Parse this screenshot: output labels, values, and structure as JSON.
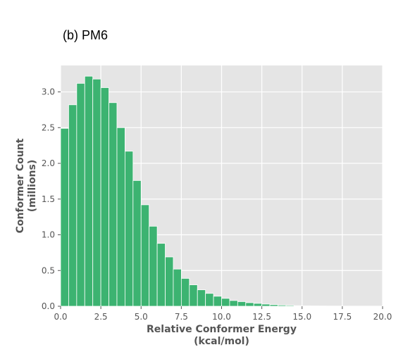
{
  "panel": {
    "title": "(b) PM6"
  },
  "chart_data": {
    "type": "bar",
    "title": "(b) PM6",
    "xlabel_lines": [
      "Relative Conformer Energy",
      "(kcal/mol)"
    ],
    "ylabel_lines": [
      "Conformer Count",
      "(millions)"
    ],
    "xlim": [
      0,
      20
    ],
    "ylim": [
      0,
      3.37
    ],
    "xticks": [
      "0.0",
      "2.5",
      "5.0",
      "7.5",
      "10.0",
      "12.5",
      "15.0",
      "17.5",
      "20.0"
    ],
    "yticks": [
      "0.0",
      "0.5",
      "1.0",
      "1.5",
      "2.0",
      "2.5",
      "3.0"
    ],
    "grid": true,
    "background": "#e5e5e5",
    "bar_color": "#3cb371",
    "bin_width": 0.5,
    "bins": [
      {
        "x": 0.0,
        "value": 2.49
      },
      {
        "x": 0.5,
        "value": 2.82
      },
      {
        "x": 1.0,
        "value": 3.12
      },
      {
        "x": 1.5,
        "value": 3.22
      },
      {
        "x": 2.0,
        "value": 3.18
      },
      {
        "x": 2.5,
        "value": 3.06
      },
      {
        "x": 3.0,
        "value": 2.85
      },
      {
        "x": 3.5,
        "value": 2.5
      },
      {
        "x": 4.0,
        "value": 2.17
      },
      {
        "x": 4.5,
        "value": 1.76
      },
      {
        "x": 5.0,
        "value": 1.42
      },
      {
        "x": 5.5,
        "value": 1.12
      },
      {
        "x": 6.0,
        "value": 0.88
      },
      {
        "x": 6.5,
        "value": 0.69
      },
      {
        "x": 7.0,
        "value": 0.52
      },
      {
        "x": 7.5,
        "value": 0.39
      },
      {
        "x": 8.0,
        "value": 0.3
      },
      {
        "x": 8.5,
        "value": 0.23
      },
      {
        "x": 9.0,
        "value": 0.18
      },
      {
        "x": 9.5,
        "value": 0.14
      },
      {
        "x": 10.0,
        "value": 0.11
      },
      {
        "x": 10.5,
        "value": 0.08
      },
      {
        "x": 11.0,
        "value": 0.065
      },
      {
        "x": 11.5,
        "value": 0.05
      },
      {
        "x": 12.0,
        "value": 0.04
      },
      {
        "x": 12.5,
        "value": 0.03
      },
      {
        "x": 13.0,
        "value": 0.022
      },
      {
        "x": 13.5,
        "value": 0.016
      },
      {
        "x": 14.0,
        "value": 0.012
      },
      {
        "x": 14.5,
        "value": 0.008
      },
      {
        "x": 15.0,
        "value": 0.005
      },
      {
        "x": 15.5,
        "value": 0.004
      },
      {
        "x": 16.0,
        "value": 0.003
      },
      {
        "x": 16.5,
        "value": 0.002
      },
      {
        "x": 17.0,
        "value": 0.0015
      },
      {
        "x": 17.5,
        "value": 0.001
      },
      {
        "x": 18.0,
        "value": 0.0008
      },
      {
        "x": 18.5,
        "value": 0.0006
      },
      {
        "x": 19.0,
        "value": 0.0005
      },
      {
        "x": 19.5,
        "value": 0.0004
      }
    ]
  }
}
